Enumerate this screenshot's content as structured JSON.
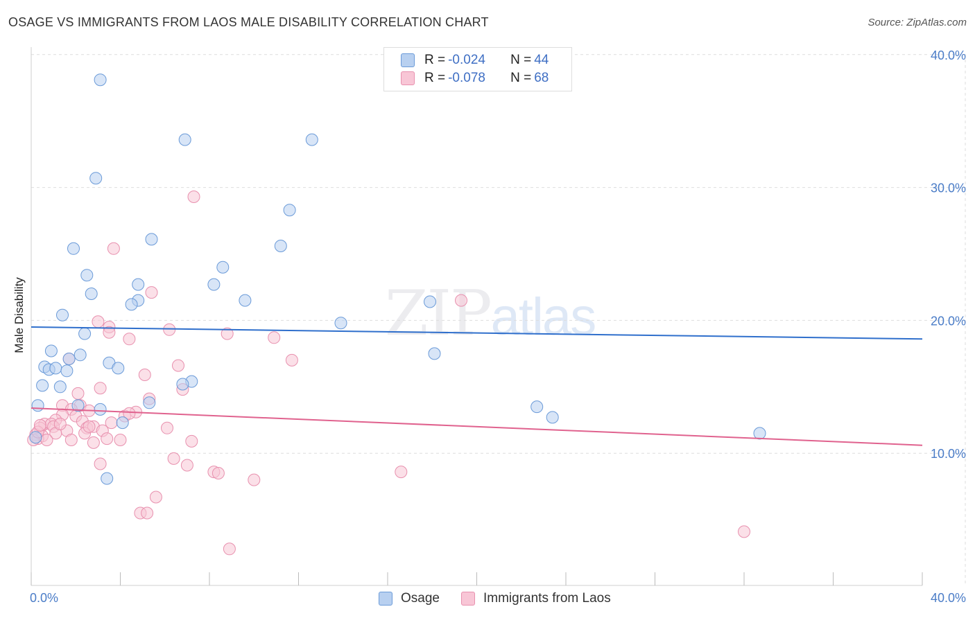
{
  "title": "OSAGE VS IMMIGRANTS FROM LAOS MALE DISABILITY CORRELATION CHART",
  "source": "Source: ZipAtlas.com",
  "watermark": {
    "zip": "ZIP",
    "atlas": "atlas"
  },
  "legend_top": {
    "rows": [
      {
        "r_label": "R = ",
        "r_value": "-0.024",
        "n_label": "N = ",
        "n_value": "44"
      },
      {
        "r_label": "R = ",
        "r_value": "-0.078",
        "n_label": "N = ",
        "n_value": "68"
      }
    ]
  },
  "legend_bottom": {
    "series1": "Osage",
    "series2": "Immigrants from Laos"
  },
  "colors": {
    "osage_fill": "#b8d0f0",
    "osage_stroke": "#6a9ad8",
    "osage_line": "#2f6fcc",
    "laos_fill": "#f8c6d6",
    "laos_stroke": "#e890ae",
    "laos_line": "#e0628e",
    "axis_text": "#4a7cc7",
    "grid": "#dddddd"
  },
  "chart_data": {
    "type": "scatter",
    "title": "OSAGE VS IMMIGRANTS FROM LAOS MALE DISABILITY CORRELATION CHART",
    "xlabel": "",
    "ylabel": "Male Disability",
    "xlim": [
      0,
      40
    ],
    "ylim": [
      0,
      40
    ],
    "x_ticks": [
      "0.0%",
      "40.0%"
    ],
    "y_ticks": [
      {
        "value": 10,
        "label": "10.0%"
      },
      {
        "value": 20,
        "label": "20.0%"
      },
      {
        "value": 30,
        "label": "30.0%"
      },
      {
        "value": 40,
        "label": "40.0%"
      }
    ],
    "series": [
      {
        "name": "Osage",
        "r": -0.024,
        "n": 44,
        "trend": [
          [
            0,
            19.5
          ],
          [
            40,
            18.6
          ]
        ],
        "points": [
          [
            3.1,
            38.1
          ],
          [
            6.9,
            33.6
          ],
          [
            12.6,
            33.6
          ],
          [
            2.9,
            30.7
          ],
          [
            11.6,
            28.3
          ],
          [
            1.9,
            25.4
          ],
          [
            5.4,
            26.1
          ],
          [
            11.2,
            25.6
          ],
          [
            8.6,
            24.0
          ],
          [
            2.5,
            23.4
          ],
          [
            4.8,
            22.7
          ],
          [
            8.2,
            22.7
          ],
          [
            2.7,
            22.0
          ],
          [
            4.8,
            21.5
          ],
          [
            9.6,
            21.5
          ],
          [
            4.5,
            21.2
          ],
          [
            17.9,
            21.4
          ],
          [
            1.4,
            20.4
          ],
          [
            13.9,
            19.8
          ],
          [
            2.4,
            19.0
          ],
          [
            0.9,
            17.7
          ],
          [
            2.2,
            17.4
          ],
          [
            1.7,
            17.1
          ],
          [
            18.1,
            17.5
          ],
          [
            0.6,
            16.5
          ],
          [
            0.8,
            16.3
          ],
          [
            1.1,
            16.4
          ],
          [
            1.6,
            16.2
          ],
          [
            3.5,
            16.8
          ],
          [
            3.9,
            16.4
          ],
          [
            0.5,
            15.1
          ],
          [
            1.3,
            15.0
          ],
          [
            7.2,
            15.4
          ],
          [
            6.8,
            15.2
          ],
          [
            0.3,
            13.6
          ],
          [
            2.1,
            13.6
          ],
          [
            5.3,
            13.8
          ],
          [
            3.1,
            13.3
          ],
          [
            22.7,
            13.5
          ],
          [
            23.4,
            12.7
          ],
          [
            4.1,
            12.3
          ],
          [
            32.7,
            11.5
          ],
          [
            0.2,
            11.2
          ],
          [
            3.4,
            8.1
          ]
        ]
      },
      {
        "name": "Immigrants from Laos",
        "r": -0.078,
        "n": 68,
        "trend": [
          [
            0,
            13.4
          ],
          [
            40,
            10.6
          ]
        ],
        "points": [
          [
            7.3,
            29.3
          ],
          [
            3.7,
            25.4
          ],
          [
            5.4,
            22.1
          ],
          [
            19.3,
            21.5
          ],
          [
            3.0,
            19.9
          ],
          [
            3.5,
            19.5
          ],
          [
            3.5,
            19.1
          ],
          [
            6.2,
            19.3
          ],
          [
            8.8,
            19.0
          ],
          [
            10.9,
            18.7
          ],
          [
            4.4,
            18.6
          ],
          [
            1.7,
            17.1
          ],
          [
            11.7,
            17.0
          ],
          [
            6.6,
            16.6
          ],
          [
            5.1,
            15.9
          ],
          [
            3.1,
            14.9
          ],
          [
            6.8,
            14.8
          ],
          [
            2.1,
            14.5
          ],
          [
            5.3,
            14.1
          ],
          [
            1.4,
            13.6
          ],
          [
            2.2,
            13.6
          ],
          [
            1.8,
            13.3
          ],
          [
            2.6,
            13.2
          ],
          [
            4.7,
            13.1
          ],
          [
            1.4,
            12.9
          ],
          [
            2.0,
            12.8
          ],
          [
            4.2,
            12.8
          ],
          [
            1.1,
            12.5
          ],
          [
            2.3,
            12.4
          ],
          [
            3.6,
            12.3
          ],
          [
            0.6,
            12.2
          ],
          [
            0.9,
            12.2
          ],
          [
            1.0,
            12.0
          ],
          [
            0.4,
            11.9
          ],
          [
            1.6,
            11.7
          ],
          [
            2.5,
            11.9
          ],
          [
            2.8,
            12.0
          ],
          [
            3.2,
            11.7
          ],
          [
            6.1,
            11.9
          ],
          [
            1.1,
            11.5
          ],
          [
            2.4,
            11.5
          ],
          [
            0.2,
            11.4
          ],
          [
            0.5,
            11.3
          ],
          [
            0.3,
            11.1
          ],
          [
            0.1,
            11.0
          ],
          [
            1.8,
            11.0
          ],
          [
            3.4,
            11.1
          ],
          [
            4.0,
            11.0
          ],
          [
            7.2,
            10.9
          ],
          [
            2.8,
            10.8
          ],
          [
            6.4,
            9.6
          ],
          [
            3.1,
            9.2
          ],
          [
            7.0,
            9.1
          ],
          [
            8.2,
            8.6
          ],
          [
            8.4,
            8.5
          ],
          [
            10.0,
            8.0
          ],
          [
            16.6,
            8.6
          ],
          [
            5.6,
            6.7
          ],
          [
            4.9,
            5.5
          ],
          [
            5.2,
            5.5
          ],
          [
            32.0,
            4.1
          ],
          [
            8.9,
            2.8
          ],
          [
            0.3,
            11.6
          ],
          [
            1.3,
            12.2
          ],
          [
            0.7,
            11.0
          ],
          [
            2.6,
            12.0
          ],
          [
            4.4,
            13.0
          ],
          [
            0.4,
            12.1
          ]
        ]
      }
    ]
  }
}
